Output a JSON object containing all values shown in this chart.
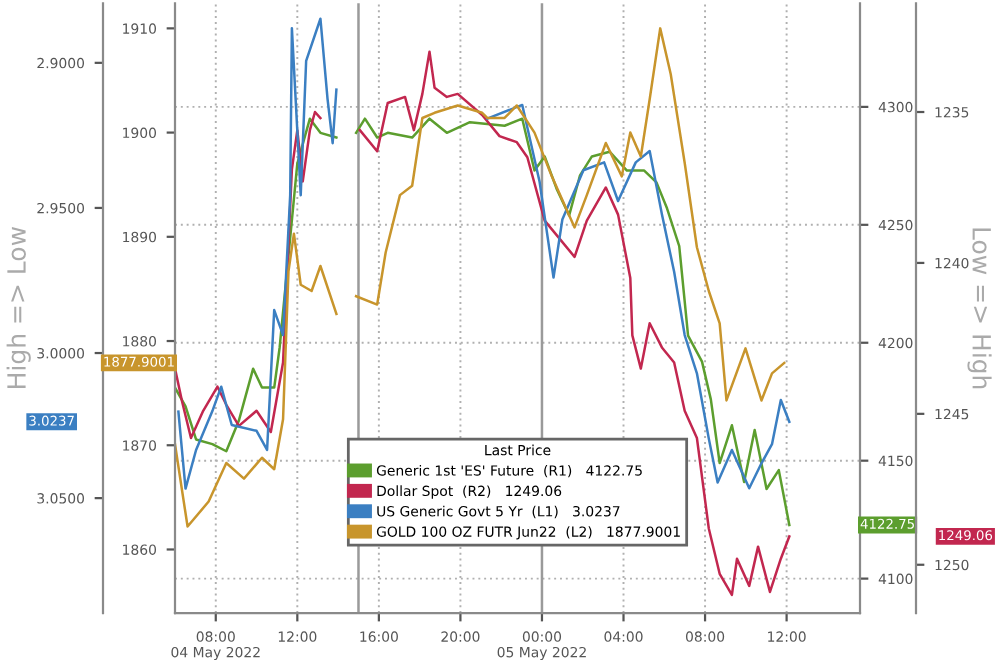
{
  "chart_data": [
    {
      "type": "line",
      "y2label": "Low => High",
      "annotations": [
        "4122.75",
        "1249.06"
      ],
      "legend_title": "Last Price",
      "legend": "bottom",
      "grid": true,
      "line_style": "solid",
      "xlim": [
        "2022-05-04T06:00",
        "2022-05-05T15:36"
      ],
      "xticks": [
        {
          "value": "2022-05-04T08:00",
          "label": "08:00\n04 May 2022"
        },
        {
          "value": "2022-05-04T12:00",
          "label": "12:00"
        },
        {
          "value": "2022-05-04T16:00",
          "label": "16:00"
        },
        {
          "value": "2022-05-04T20:00",
          "label": "20:00"
        },
        {
          "value": "2022-05-05T00:00",
          "label": "00:00\n05 May 2022"
        },
        {
          "value": "2022-05-05T04:00",
          "label": "04:00"
        },
        {
          "value": "2022-05-05T08:00",
          "label": "08:00"
        },
        {
          "value": "2022-05-05T12:00",
          "label": "12:00"
        }
      ],
      "ylim": [
        4085.4,
        4343.9
      ],
      "yticks": [
        4100,
        4150,
        4200,
        4250,
        4300
      ],
      "y2lim": [
        1251.6,
        1231.4
      ],
      "y2ticks": [
        1235,
        1240,
        1245,
        1250
      ],
      "ref_lines": [
        {
          "axis": "x",
          "value": "2022-05-04T15:00",
          "color": "#9a9a9a"
        },
        {
          "axis": "x",
          "value": "2022-05-05T00:00",
          "color": "#9a9a9a"
        }
      ],
      "series": [
        {
          "name": "Generic 1st 'ES' Future  (R1)   4122.75",
          "color": "#5c9e2e",
          "x": [
            "2022-05-04T06:00",
            "2022-05-04T06:31",
            "2022-05-04T07:02",
            "2022-05-04T07:50",
            "2022-05-04T08:31",
            "2022-05-04T09:08",
            "2022-05-04T09:50",
            "2022-05-04T10:16",
            "2022-05-04T10:52",
            "2022-05-04T11:08",
            "2022-05-04T11:44",
            "2022-05-04T12:00",
            "2022-05-04T12:37",
            "2022-05-04T13:08",
            "2022-05-04T13:55",
            "2022-05-04T14:30",
            "2022-05-04T14:53",
            "2022-05-04T15:19",
            "2022-05-04T15:55",
            "2022-05-04T16:26",
            "2022-05-04T17:38",
            "2022-05-04T18:29",
            "2022-05-04T19:20",
            "2022-05-04T20:28",
            "2022-05-04T22:10",
            "2022-05-04T23:02",
            "2022-05-04T23:38",
            "2022-05-05T00:08",
            "2022-05-05T00:44",
            "2022-05-05T01:20",
            "2022-05-05T01:52",
            "2022-05-05T02:27",
            "2022-05-05T03:19",
            "2022-05-05T04:10",
            "2022-05-05T05:01",
            "2022-05-05T05:37",
            "2022-05-05T06:08",
            "2022-05-05T06:44",
            "2022-05-05T07:10",
            "2022-05-05T07:51",
            "2022-05-05T08:17",
            "2022-05-05T08:43",
            "2022-05-05T09:19",
            "2022-05-05T09:55",
            "2022-05-05T10:26",
            "2022-05-05T11:01",
            "2022-05-05T11:37",
            "2022-05-05T12:08"
          ],
          "values": [
            4181,
            4173,
            4159,
            4157,
            4154,
            4167,
            4189,
            4181,
            4181,
            4198,
            4252,
            4276,
            4295,
            4289,
            4287,
            null,
            4289,
            4295,
            4287,
            4289,
            4287,
            4295,
            4289,
            4293.5,
            4292,
            4295,
            4273,
            4279,
            4265,
            4254,
            4271,
            4279,
            4281,
            4273,
            4273,
            4268,
            4257,
            4241,
            4203,
            4192,
            4176,
            4149,
            4165,
            4141,
            4163,
            4138,
            4146,
            4122.75
          ]
        },
        {
          "name": "Dollar Spot  (R2)   1249.06",
          "color": "#c2274f",
          "axis": "y2",
          "x": [
            "2022-05-04T06:00",
            "2022-05-04T06:21",
            "2022-05-04T06:47",
            "2022-05-04T07:23",
            "2022-05-04T08:05",
            "2022-05-04T08:31",
            "2022-05-04T09:08",
            "2022-05-04T10:00",
            "2022-05-04T10:42",
            "2022-05-04T11:18",
            "2022-05-04T11:44",
            "2022-05-04T12:00",
            "2022-05-04T12:16",
            "2022-05-04T12:37",
            "2022-05-04T12:52",
            "2022-05-04T13:08",
            "2022-05-04T14:30",
            "2022-05-04T15:04",
            "2022-05-04T15:55",
            "2022-05-04T16:26",
            "2022-05-04T17:17",
            "2022-05-04T17:43",
            "2022-05-04T18:08",
            "2022-05-04T18:29",
            "2022-05-04T18:44",
            "2022-05-04T19:20",
            "2022-05-04T19:52",
            "2022-05-04T21:04",
            "2022-05-04T21:55",
            "2022-05-04T22:46",
            "2022-05-04T23:17",
            "2022-05-05T00:08",
            "2022-05-05T01:36",
            "2022-05-05T02:12",
            "2022-05-05T03:08",
            "2022-05-05T03:44",
            "2022-05-05T04:20",
            "2022-05-05T04:26",
            "2022-05-05T04:51",
            "2022-05-05T05:17",
            "2022-05-05T05:53",
            "2022-05-05T06:29",
            "2022-05-05T07:00",
            "2022-05-05T07:36",
            "2022-05-05T08:11",
            "2022-05-05T08:43",
            "2022-05-05T09:19",
            "2022-05-05T09:34",
            "2022-05-05T10:10",
            "2022-05-05T10:36",
            "2022-05-05T11:11",
            "2022-05-05T11:43",
            "2022-05-05T12:08"
          ],
          "values": [
            1243.5,
            1244.6,
            1245.8,
            1244.9,
            1244.1,
            1244.7,
            1245.4,
            1244.9,
            1245.6,
            1243.3,
            1236.9,
            1235.6,
            1237.3,
            1235.6,
            1235.0,
            1235.2,
            null,
            1235.6,
            1236.3,
            1234.7,
            1234.5,
            1235.6,
            1234.4,
            1233.0,
            1234.2,
            1234.5,
            1234.4,
            1235.1,
            1235.8,
            1236.0,
            1236.5,
            1238.6,
            1239.8,
            1238.6,
            1237.5,
            1238.4,
            1240.5,
            1242.4,
            1243.5,
            1242.0,
            1242.8,
            1243.3,
            1244.9,
            1245.8,
            1248.8,
            1250.3,
            1251.0,
            1249.8,
            1250.7,
            1249.4,
            1250.9,
            1249.8,
            1249.06
          ]
        }
      ]
    },
    {
      "type": "line",
      "ylabel": "High => Low",
      "annotations": [
        "3.0237",
        "1877.9001"
      ],
      "legend": "bottom",
      "tick_labels": "y",
      "line_style": "solid",
      "xlim": [
        "2022-05-04T06:00",
        "2022-05-05T15:36"
      ],
      "ylim": [
        3.0896,
        2.8795
      ],
      "yticks": [
        {
          "value": 2.9,
          "label": "2.9000"
        },
        {
          "value": 2.95,
          "label": "2.9500"
        },
        {
          "value": 3.0,
          "label": "3.0000"
        },
        {
          "value": 3.05,
          "label": "3.0500"
        }
      ],
      "y2lim": [
        1853.9,
        1912.4
      ],
      "y2ticks": [
        1860,
        1870,
        1880,
        1890,
        1900,
        1910
      ],
      "series": [
        {
          "name": "US Generic Govt 5 Yr  (L1)   3.0237",
          "color": "#3b7fc2",
          "x": [
            "2022-05-04T06:10",
            "2022-05-04T06:31",
            "2022-05-04T07:02",
            "2022-05-04T07:50",
            "2022-05-04T08:16",
            "2022-05-04T08:47",
            "2022-05-04T10:00",
            "2022-05-04T10:31",
            "2022-05-04T10:52",
            "2022-05-04T11:18",
            "2022-05-04T11:39",
            "2022-05-04T11:44",
            "2022-05-04T12:10",
            "2022-05-04T12:26",
            "2022-05-04T13:08",
            "2022-05-04T13:29",
            "2022-05-04T13:44",
            "2022-05-04T13:55",
            "2022-05-04T14:30",
            "2022-05-04T21:19",
            "2022-05-04T23:02",
            "2022-05-04T23:53",
            "2022-05-05T00:34",
            "2022-05-05T01:00",
            "2022-05-05T02:02",
            "2022-05-05T03:03",
            "2022-05-05T03:44",
            "2022-05-05T04:36",
            "2022-05-05T05:17",
            "2022-05-05T05:53",
            "2022-05-05T06:29",
            "2022-05-05T07:00",
            "2022-05-05T07:36",
            "2022-05-05T08:11",
            "2022-05-05T08:37",
            "2022-05-05T09:19",
            "2022-05-05T10:10",
            "2022-05-05T10:46",
            "2022-05-05T11:17",
            "2022-05-05T11:43",
            "2022-05-05T12:08"
          ],
          "values": [
            3.0202,
            3.0467,
            3.0334,
            3.02,
            3.0116,
            3.0248,
            3.0268,
            3.0334,
            2.9852,
            2.9938,
            2.9456,
            2.8881,
            2.9456,
            2.8993,
            2.8848,
            2.9125,
            2.9277,
            2.9092,
            null,
            2.9192,
            2.9145,
            2.941,
            2.974,
            2.954,
            2.937,
            2.9343,
            2.9476,
            2.9343,
            2.9304,
            2.9522,
            2.972,
            2.9938,
            3.007,
            3.0295,
            3.0446,
            3.0334,
            3.0466,
            3.038,
            3.0314,
            3.0162,
            3.0237
          ]
        },
        {
          "name": "GOLD 100 OZ FUTR Jun22  (L2)   1877.9001",
          "color": "#c8952c",
          "axis": "y2",
          "x": [
            "2022-05-04T06:00",
            "2022-05-04T06:37",
            "2022-05-04T07:39",
            "2022-05-04T08:31",
            "2022-05-04T09:23",
            "2022-05-04T10:16",
            "2022-05-04T10:52",
            "2022-05-04T11:18",
            "2022-05-04T11:34",
            "2022-05-04T11:50",
            "2022-05-04T12:10",
            "2022-05-04T12:42",
            "2022-05-04T13:08",
            "2022-05-04T13:55",
            "2022-05-04T14:30",
            "2022-05-04T14:53",
            "2022-05-04T15:55",
            "2022-05-04T16:20",
            "2022-05-04T17:02",
            "2022-05-04T17:38",
            "2022-05-04T18:08",
            "2022-05-04T18:44",
            "2022-05-04T19:52",
            "2022-05-04T21:04",
            "2022-05-04T21:19",
            "2022-05-04T22:10",
            "2022-05-04T22:46",
            "2022-05-04T23:38",
            "2022-05-05T00:29",
            "2022-05-05T01:36",
            "2022-05-05T02:12",
            "2022-05-05T03:08",
            "2022-05-05T03:55",
            "2022-05-05T04:20",
            "2022-05-05T04:51",
            "2022-05-05T05:17",
            "2022-05-05T05:48",
            "2022-05-05T06:19",
            "2022-05-05T07:00",
            "2022-05-05T07:36",
            "2022-05-05T08:11",
            "2022-05-05T08:43",
            "2022-05-05T09:03",
            "2022-05-05T09:59",
            "2022-05-05T10:46",
            "2022-05-05T11:17",
            "2022-05-05T11:53"
          ],
          "values": [
            1870.1,
            1862.2,
            1864.6,
            1868.3,
            1866.8,
            1868.8,
            1867.7,
            1872.5,
            1886.7,
            1890.3,
            1885.4,
            1884.8,
            1887.2,
            1882.6,
            null,
            1884.3,
            1883.5,
            1888.5,
            1894.0,
            1894.9,
            1901.4,
            1901.9,
            1902.6,
            1901.9,
            1901.4,
            1901.4,
            1902.6,
            1900.0,
            1895.8,
            1890.9,
            1894.0,
            1899.0,
            1895.8,
            1900.0,
            1897.7,
            1903.2,
            1910.0,
            1905.6,
            1897.1,
            1889.0,
            1884.8,
            1881.7,
            1874.3,
            1879.3,
            1874.3,
            1876.9,
            1877.9001
          ]
        }
      ]
    }
  ]
}
